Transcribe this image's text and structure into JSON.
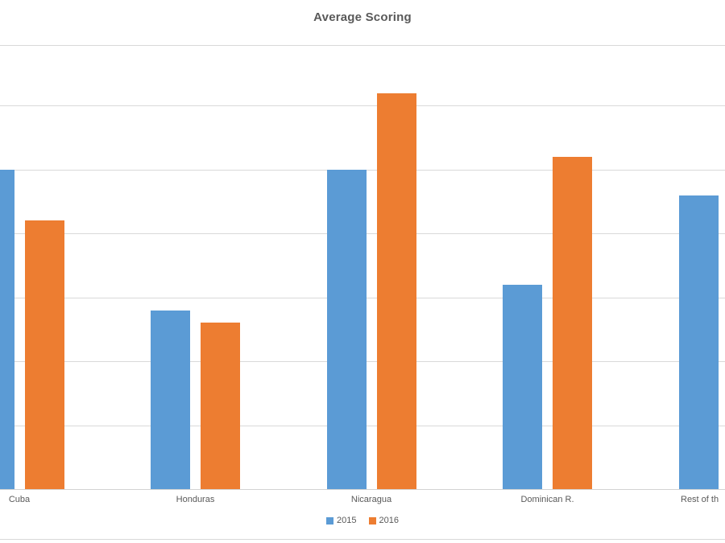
{
  "chart_data": {
    "type": "bar",
    "title": "Average Scoring",
    "categories": [
      "Cuba",
      "Honduras",
      "Nicaragua",
      "Dominican R.",
      "Rest of th"
    ],
    "series": [
      {
        "name": "2015",
        "color": "#5B9BD5",
        "values": [
          5.0,
          2.8,
          5.0,
          3.2,
          4.6
        ]
      },
      {
        "name": "2016",
        "color": "#ED7D31",
        "values": [
          4.2,
          2.6,
          6.2,
          5.2,
          null
        ]
      }
    ],
    "ylim": [
      0,
      7
    ],
    "y_axis_tick_labels": [],
    "grid": true,
    "gridline_count": 8,
    "legend_position": "bottom",
    "notes": "y-axis labels cropped out of view; last category and its 2016 bar cropped at right edge; first 2015 bar cropped at left edge",
    "colors": {
      "grid": "#d9d9d9",
      "text": "#595959",
      "background": "#ffffff",
      "series_2015": "#5B9BD5",
      "series_2016": "#ED7D31"
    }
  }
}
